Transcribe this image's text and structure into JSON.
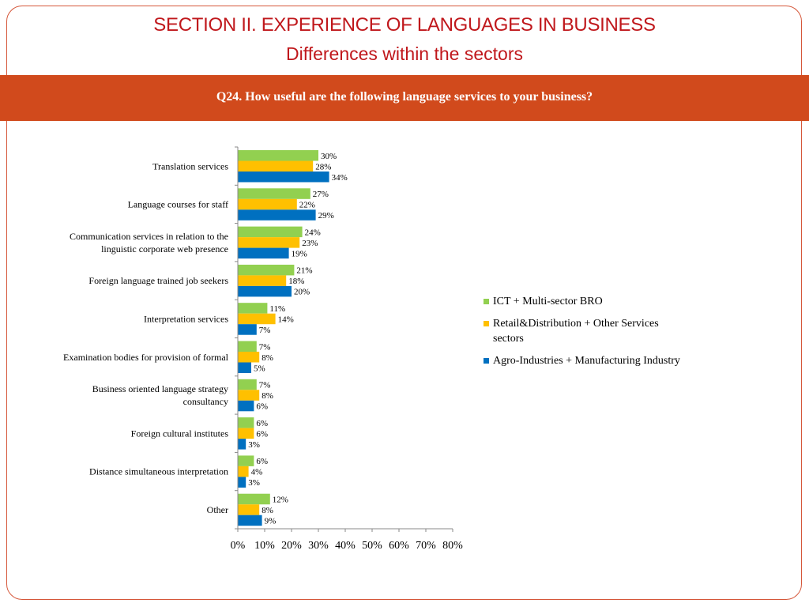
{
  "slide": {
    "title": "SECTION II. EXPERIENCE OF LANGUAGES IN BUSINESS",
    "subtitle": "Differences within the sectors",
    "question": "Q24. How useful are the following language services to your business?"
  },
  "colors": {
    "frame": "#d5573a",
    "title": "#c0181c",
    "band": "#d14a1c",
    "series": [
      "#92d050",
      "#ffc000",
      "#0070c0"
    ]
  },
  "chart_data": {
    "type": "bar",
    "orientation": "horizontal",
    "categories": [
      [
        "Translation services"
      ],
      [
        "Language courses for staff"
      ],
      [
        "Communication services in relation to the",
        "linguistic corporate web presence"
      ],
      [
        "Foreign language trained job seekers"
      ],
      [
        "Interpretation services"
      ],
      [
        "Examination bodies for provision of formal"
      ],
      [
        "Business oriented language strategy",
        "consultancy"
      ],
      [
        "Foreign cultural institutes"
      ],
      [
        "Distance simultaneous interpretation"
      ],
      [
        "Other"
      ]
    ],
    "series": [
      {
        "name": "ICT + Multi-sector BRO",
        "values": [
          30,
          27,
          24,
          21,
          11,
          7,
          7,
          6,
          6,
          12
        ]
      },
      {
        "name": "Retail&Distribution + Other Services sectors",
        "values": [
          28,
          22,
          23,
          18,
          14,
          8,
          8,
          6,
          4,
          8
        ]
      },
      {
        "name": "Agro-Industries + Manufacturing Industry",
        "values": [
          34,
          29,
          19,
          20,
          7,
          5,
          6,
          3,
          3,
          9
        ]
      }
    ],
    "xlim": [
      0,
      80
    ],
    "xticks": [
      "0%",
      "10%",
      "20%",
      "30%",
      "40%",
      "50%",
      "60%",
      "70%",
      "80%"
    ],
    "value_suffix": "%",
    "grid": false,
    "legend_position": "right"
  },
  "legend": [
    {
      "label": "ICT + Multi-sector BRO"
    },
    {
      "label": "Retail&Distribution + Other Services sectors"
    },
    {
      "label": "Agro-Industries + Manufacturing Industry"
    }
  ]
}
